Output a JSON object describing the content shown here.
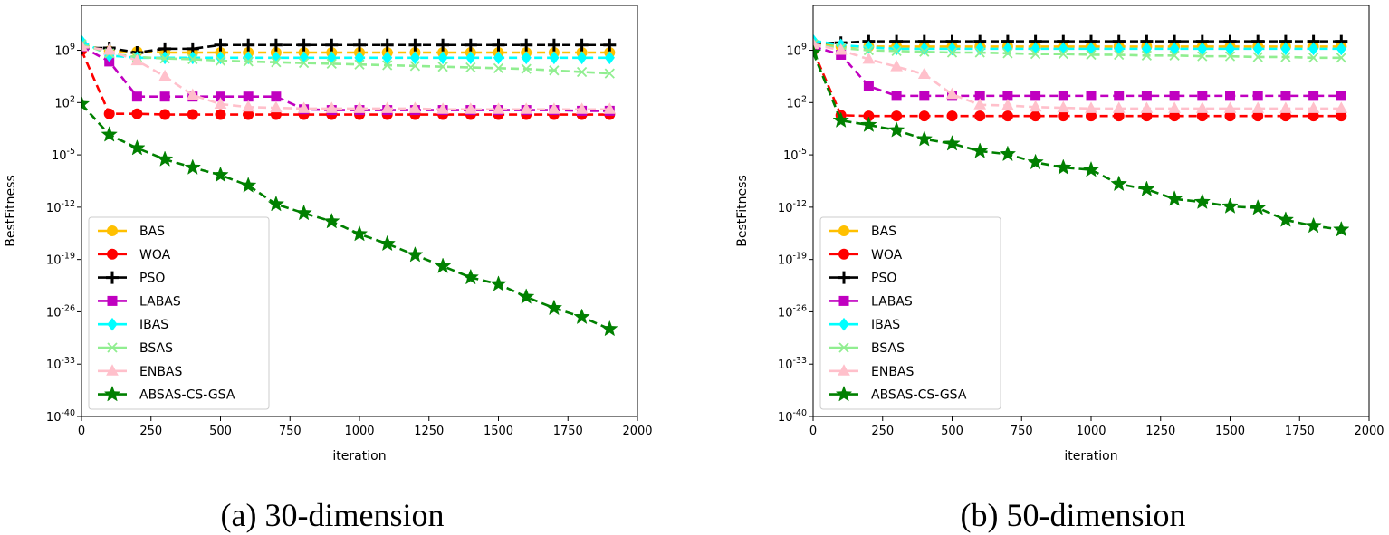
{
  "chart_data": [
    {
      "id": "a",
      "type": "line",
      "caption": "(a) 30-dimension",
      "xlabel": "iteration",
      "ylabel": "BestFitness",
      "xlim": [
        0,
        2000
      ],
      "xticks": [
        "0",
        "250",
        "500",
        "750",
        "1000",
        "1250",
        "1500",
        "1750",
        "2000"
      ],
      "ylim_log10": [
        -40,
        15
      ],
      "yticks_exp": [
        "-40",
        "-33",
        "-26",
        "-19",
        "-12",
        "-5",
        "2",
        "9"
      ],
      "yscale": "log",
      "grid": false,
      "legend_position": "center-left",
      "series": [
        {
          "name": "BAS",
          "color": "#FFC000",
          "marker": "circle",
          "x": [
            0,
            100,
            200,
            300,
            400,
            500,
            600,
            700,
            800,
            900,
            1000,
            1100,
            1200,
            1300,
            1400,
            1500,
            1600,
            1700,
            1800,
            1900
          ],
          "log10_y": [
            9.8,
            8.9,
            8.8,
            8.7,
            8.7,
            8.7,
            8.7,
            8.7,
            8.7,
            8.7,
            8.7,
            8.7,
            8.7,
            8.7,
            8.7,
            8.7,
            8.7,
            8.7,
            8.7,
            8.7
          ]
        },
        {
          "name": "WOA",
          "color": "#FF0000",
          "marker": "circle",
          "x": [
            0,
            100,
            200,
            300,
            400,
            500,
            600,
            700,
            800,
            900,
            1000,
            1100,
            1200,
            1300,
            1400,
            1500,
            1600,
            1700,
            1800,
            1900
          ],
          "log10_y": [
            9,
            0.5,
            0.5,
            0.4,
            0.4,
            0.4,
            0.4,
            0.4,
            0.4,
            0.4,
            0.4,
            0.4,
            0.4,
            0.4,
            0.4,
            0.4,
            0.4,
            0.4,
            0.4,
            0.4
          ]
        },
        {
          "name": "PSO",
          "color": "#000000",
          "marker": "plus",
          "x": [
            0,
            100,
            200,
            300,
            400,
            500,
            600,
            700,
            800,
            900,
            1000,
            1100,
            1200,
            1300,
            1400,
            1500,
            1600,
            1700,
            1800,
            1900
          ],
          "log10_y": [
            9.3,
            9.3,
            8.7,
            9.2,
            9.2,
            9.7,
            9.7,
            9.7,
            9.7,
            9.7,
            9.7,
            9.7,
            9.7,
            9.7,
            9.7,
            9.7,
            9.7,
            9.7,
            9.7,
            9.7
          ]
        },
        {
          "name": "LABAS",
          "color": "#C000C0",
          "marker": "square",
          "x": [
            0,
            100,
            200,
            300,
            400,
            500,
            600,
            700,
            800,
            900,
            1000,
            1100,
            1200,
            1300,
            1400,
            1500,
            1600,
            1700,
            1800,
            1900
          ],
          "log10_y": [
            9.5,
            7.5,
            2.8,
            2.8,
            2.8,
            2.8,
            2.8,
            2.8,
            1.1,
            1.0,
            1.0,
            1.0,
            1.0,
            1.0,
            1.0,
            1.0,
            1.0,
            1.0,
            0.9,
            0.9
          ]
        },
        {
          "name": "IBAS",
          "color": "#00FFFF",
          "marker": "diamond",
          "x": [
            0,
            100,
            200,
            300,
            400,
            500,
            600,
            700,
            800,
            900,
            1000,
            1100,
            1200,
            1300,
            1400,
            1500,
            1600,
            1700,
            1800,
            1900
          ],
          "log10_y": [
            10.2,
            8.3,
            8.0,
            8.0,
            8.0,
            8.0,
            8.0,
            8.0,
            8.0,
            8.0,
            8.0,
            8.0,
            8.0,
            8.0,
            8.0,
            8.0,
            8.0,
            8.0,
            8.0,
            8.0
          ]
        },
        {
          "name": "BSAS",
          "color": "#90EE90",
          "marker": "x",
          "x": [
            0,
            100,
            200,
            300,
            400,
            500,
            600,
            700,
            800,
            900,
            1000,
            1100,
            1200,
            1300,
            1400,
            1500,
            1600,
            1700,
            1800,
            1900
          ],
          "log10_y": [
            9.8,
            8.6,
            8.1,
            7.9,
            7.8,
            7.6,
            7.5,
            7.4,
            7.3,
            7.2,
            7.1,
            7.0,
            6.9,
            6.8,
            6.7,
            6.6,
            6.5,
            6.3,
            6.1,
            5.9
          ]
        },
        {
          "name": "ENBAS",
          "color": "#FFC0CB",
          "marker": "triangle",
          "x": [
            0,
            100,
            200,
            300,
            400,
            500,
            600,
            700,
            800,
            900,
            1000,
            1100,
            1200,
            1300,
            1400,
            1500,
            1600,
            1700,
            1800,
            1900
          ],
          "log10_y": [
            9.5,
            9.0,
            7.6,
            5.5,
            3.0,
            1.8,
            1.4,
            1.3,
            1.2,
            1.2,
            1.2,
            1.2,
            1.2,
            1.1,
            1.1,
            1.1,
            1.1,
            1.1,
            1.1,
            1.1
          ]
        },
        {
          "name": "ABSAS-CS-GSA",
          "color": "#008000",
          "marker": "star",
          "x": [
            0,
            100,
            200,
            300,
            400,
            500,
            600,
            700,
            800,
            900,
            1000,
            1100,
            1200,
            1300,
            1400,
            1500,
            1600,
            1700,
            1800,
            1900
          ],
          "log10_y": [
            1.8,
            -2.3,
            -4.1,
            -5.6,
            -6.7,
            -7.7,
            -9.1,
            -11.6,
            -12.8,
            -13.9,
            -15.6,
            -16.9,
            -18.4,
            -19.9,
            -21.4,
            -22.3,
            -24.0,
            -25.5,
            -26.7,
            -28.3
          ]
        }
      ]
    },
    {
      "id": "b",
      "type": "line",
      "caption": "(b) 50-dimension",
      "xlabel": "iteration",
      "ylabel": "BestFitness",
      "xlim": [
        0,
        2000
      ],
      "xticks": [
        "0",
        "250",
        "500",
        "750",
        "1000",
        "1250",
        "1500",
        "1750",
        "2000"
      ],
      "ylim_log10": [
        -40,
        15
      ],
      "yticks_exp": [
        "-40",
        "-33",
        "-26",
        "-19",
        "-12",
        "-5",
        "2",
        "9"
      ],
      "yscale": "log",
      "grid": false,
      "legend_position": "center-left",
      "series": [
        {
          "name": "BAS",
          "color": "#FFC000",
          "marker": "circle",
          "x": [
            0,
            100,
            200,
            300,
            400,
            500,
            600,
            700,
            800,
            900,
            1000,
            1100,
            1200,
            1300,
            1400,
            1500,
            1600,
            1700,
            1800,
            1900
          ],
          "log10_y": [
            10.0,
            9.5,
            9.5,
            9.5,
            9.5,
            9.5,
            9.5,
            9.5,
            9.5,
            9.5,
            9.5,
            9.5,
            9.5,
            9.5,
            9.5,
            9.5,
            9.5,
            9.5,
            9.5,
            9.5
          ]
        },
        {
          "name": "WOA",
          "color": "#FF0000",
          "marker": "circle",
          "x": [
            0,
            100,
            200,
            300,
            400,
            500,
            600,
            700,
            800,
            900,
            1000,
            1100,
            1200,
            1300,
            1400,
            1500,
            1600,
            1700,
            1800,
            1900
          ],
          "log10_y": [
            9,
            0.3,
            0.2,
            0.2,
            0.2,
            0.2,
            0.2,
            0.2,
            0.2,
            0.2,
            0.2,
            0.2,
            0.2,
            0.2,
            0.2,
            0.2,
            0.2,
            0.2,
            0.2,
            0.2
          ]
        },
        {
          "name": "PSO",
          "color": "#000000",
          "marker": "plus",
          "x": [
            0,
            100,
            200,
            300,
            400,
            500,
            600,
            700,
            800,
            900,
            1000,
            1100,
            1200,
            1300,
            1400,
            1500,
            1600,
            1700,
            1800,
            1900
          ],
          "log10_y": [
            10.0,
            10.0,
            10.2,
            10.2,
            10.2,
            10.2,
            10.2,
            10.2,
            10.2,
            10.2,
            10.2,
            10.2,
            10.2,
            10.2,
            10.2,
            10.2,
            10.2,
            10.2,
            10.2,
            10.2
          ]
        },
        {
          "name": "LABAS",
          "color": "#C000C0",
          "marker": "square",
          "x": [
            0,
            100,
            200,
            300,
            400,
            500,
            600,
            700,
            800,
            900,
            1000,
            1100,
            1200,
            1300,
            1400,
            1500,
            1600,
            1700,
            1800,
            1900
          ],
          "log10_y": [
            9.5,
            8.4,
            4.2,
            2.9,
            2.9,
            2.9,
            2.9,
            2.9,
            2.9,
            2.9,
            2.9,
            2.9,
            2.9,
            2.9,
            2.9,
            2.9,
            2.9,
            2.9,
            2.9,
            2.9
          ]
        },
        {
          "name": "IBAS",
          "color": "#00FFFF",
          "marker": "diamond",
          "x": [
            0,
            100,
            200,
            300,
            400,
            500,
            600,
            700,
            800,
            900,
            1000,
            1100,
            1200,
            1300,
            1400,
            1500,
            1600,
            1700,
            1800,
            1900
          ],
          "log10_y": [
            10.3,
            9.7,
            9.4,
            9.2,
            9.2,
            9.2,
            9.2,
            9.2,
            9.2,
            9.2,
            9.2,
            9.2,
            9.2,
            9.2,
            9.2,
            9.2,
            9.2,
            9.2,
            9.2,
            9.2
          ]
        },
        {
          "name": "BSAS",
          "color": "#90EE90",
          "marker": "x",
          "x": [
            0,
            100,
            200,
            300,
            400,
            500,
            600,
            700,
            800,
            900,
            1000,
            1100,
            1200,
            1300,
            1400,
            1500,
            1600,
            1700,
            1800,
            1900
          ],
          "log10_y": [
            9.8,
            9.3,
            9.0,
            8.9,
            8.8,
            8.7,
            8.7,
            8.6,
            8.5,
            8.5,
            8.4,
            8.4,
            8.3,
            8.3,
            8.2,
            8.2,
            8.1,
            8.1,
            8.0,
            8.0
          ]
        },
        {
          "name": "ENBAS",
          "color": "#FFC0CB",
          "marker": "triangle",
          "x": [
            0,
            100,
            200,
            300,
            400,
            500,
            600,
            700,
            800,
            900,
            1000,
            1100,
            1200,
            1300,
            1400,
            1500,
            1600,
            1700,
            1800,
            1900
          ],
          "log10_y": [
            9.8,
            9.0,
            7.8,
            6.8,
            5.8,
            3.1,
            1.7,
            1.6,
            1.4,
            1.3,
            1.2,
            1.2,
            1.2,
            1.2,
            1.2,
            1.2,
            1.2,
            1.2,
            1.2,
            1.2
          ]
        },
        {
          "name": "ABSAS-CS-GSA",
          "color": "#008000",
          "marker": "star",
          "x": [
            0,
            100,
            200,
            300,
            400,
            500,
            600,
            700,
            800,
            900,
            1000,
            1100,
            1200,
            1300,
            1400,
            1500,
            1600,
            1700,
            1800,
            1900
          ],
          "log10_y": [
            8.7,
            -0.4,
            -1.0,
            -1.7,
            -2.9,
            -3.5,
            -4.5,
            -4.9,
            -6.0,
            -6.7,
            -7.0,
            -8.9,
            -9.6,
            -10.9,
            -11.3,
            -11.9,
            -12.1,
            -13.7,
            -14.5,
            -15.0
          ]
        }
      ]
    }
  ]
}
